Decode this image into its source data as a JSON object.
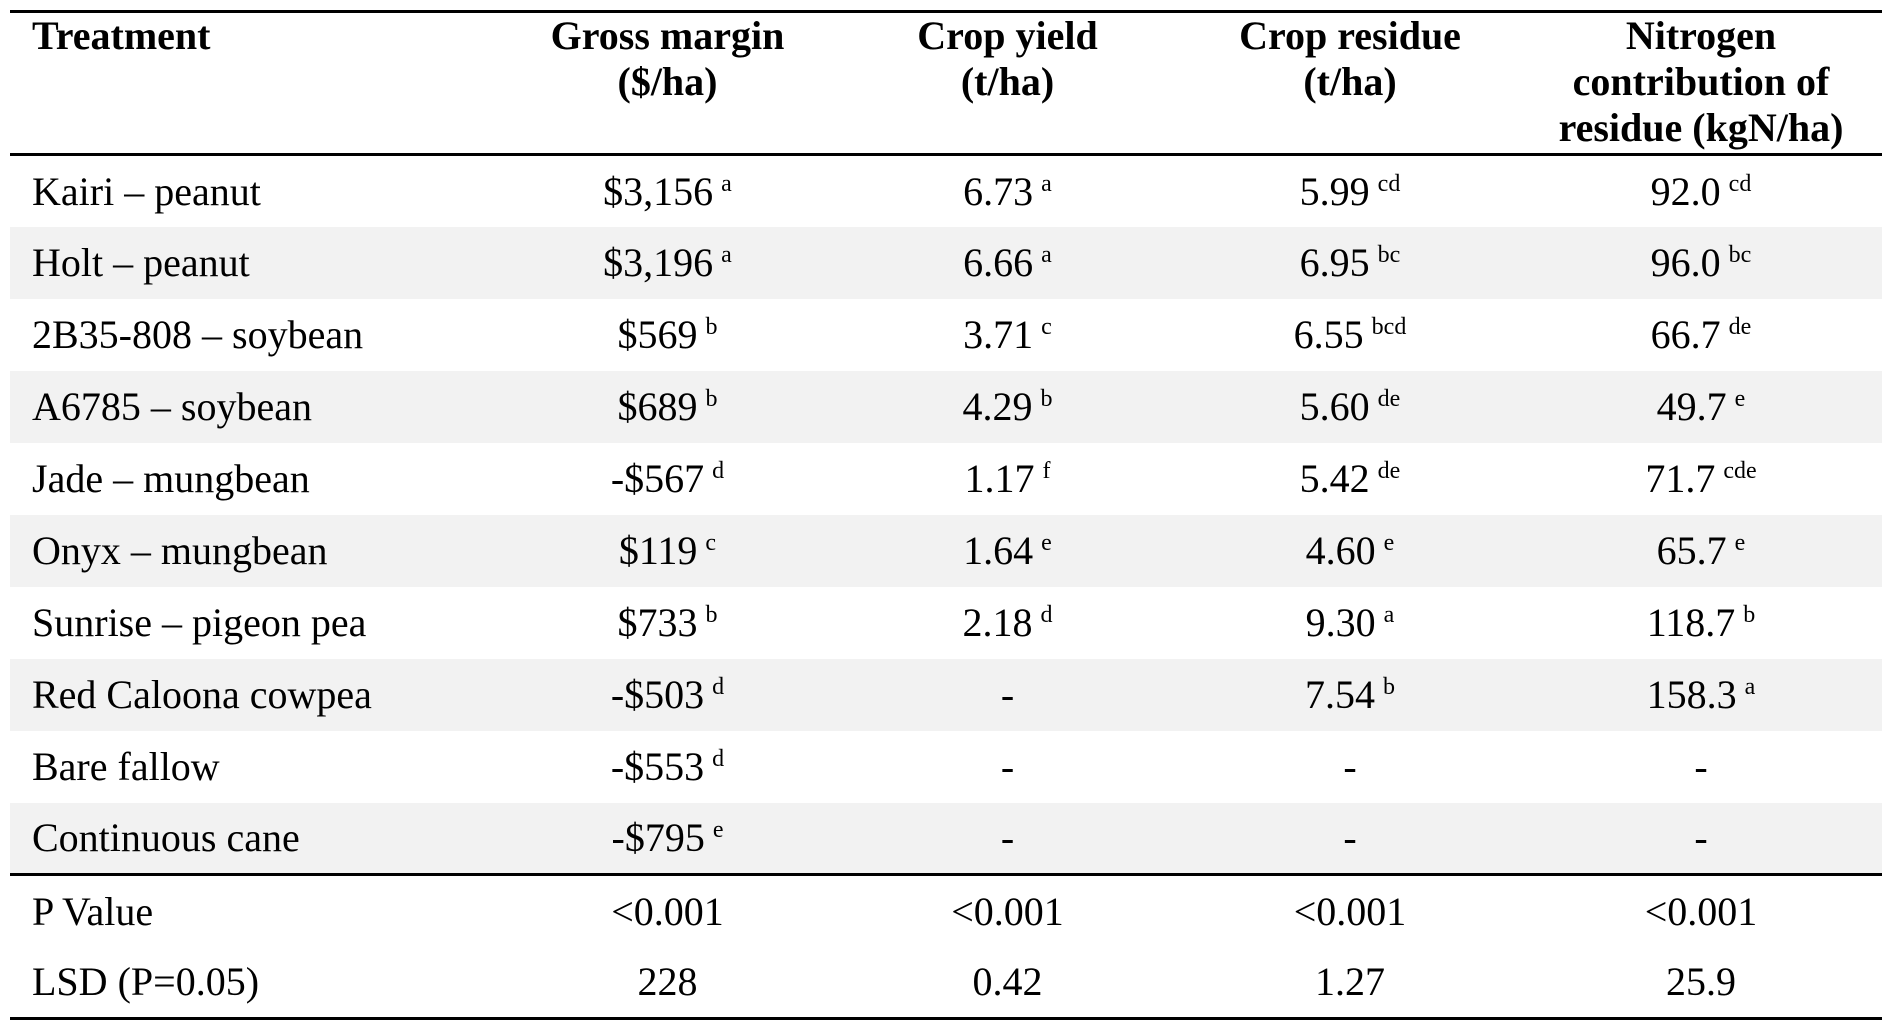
{
  "headers": {
    "treatment": "Treatment",
    "gross_margin_line1": "Gross margin",
    "gross_margin_line2": "($/ha)",
    "crop_yield_line1": "Crop yield",
    "crop_yield_line2": "(t/ha)",
    "crop_residue_line1": "Crop residue",
    "crop_residue_line2": "(t/ha)",
    "nitrogen_line1": "Nitrogen",
    "nitrogen_line2": "contribution of",
    "nitrogen_line3": "residue (kgN/ha)"
  },
  "rows": [
    {
      "treatment": "Kairi – peanut",
      "gross_margin": "$3,156",
      "gm_sig": "a",
      "crop_yield": "6.73",
      "cy_sig": "a",
      "crop_residue": "5.99",
      "cr_sig": "cd",
      "nitrogen": "92.0",
      "n_sig": "cd"
    },
    {
      "treatment": "Holt – peanut",
      "gross_margin": "$3,196",
      "gm_sig": "a",
      "crop_yield": "6.66",
      "cy_sig": "a",
      "crop_residue": "6.95",
      "cr_sig": "bc",
      "nitrogen": "96.0",
      "n_sig": "bc"
    },
    {
      "treatment": "2B35-808 – soybean",
      "gross_margin": "$569",
      "gm_sig": "b",
      "crop_yield": "3.71",
      "cy_sig": "c",
      "crop_residue": "6.55",
      "cr_sig": "bcd",
      "nitrogen": "66.7",
      "n_sig": "de"
    },
    {
      "treatment": "A6785 – soybean",
      "gross_margin": "$689",
      "gm_sig": "b",
      "crop_yield": "4.29",
      "cy_sig": "b",
      "crop_residue": "5.60",
      "cr_sig": "de",
      "nitrogen": "49.7",
      "n_sig": "e"
    },
    {
      "treatment": "Jade – mungbean",
      "gross_margin": "-$567",
      "gm_sig": "d",
      "crop_yield": "1.17",
      "cy_sig": "f",
      "crop_residue": "5.42",
      "cr_sig": "de",
      "nitrogen": "71.7",
      "n_sig": "cde"
    },
    {
      "treatment": "Onyx – mungbean",
      "gross_margin": "$119",
      "gm_sig": "c",
      "crop_yield": "1.64",
      "cy_sig": "e",
      "crop_residue": "4.60",
      "cr_sig": "e",
      "nitrogen": "65.7",
      "n_sig": "e"
    },
    {
      "treatment": "Sunrise – pigeon pea",
      "gross_margin": "$733",
      "gm_sig": "b",
      "crop_yield": "2.18",
      "cy_sig": "d",
      "crop_residue": "9.30",
      "cr_sig": "a",
      "nitrogen": "118.7",
      "n_sig": "b"
    },
    {
      "treatment": "Red Caloona cowpea",
      "gross_margin": "-$503",
      "gm_sig": "d",
      "crop_yield": "-",
      "cy_sig": "",
      "crop_residue": "7.54",
      "cr_sig": "b",
      "nitrogen": "158.3",
      "n_sig": "a"
    },
    {
      "treatment": "Bare fallow",
      "gross_margin": "-$553",
      "gm_sig": "d",
      "crop_yield": "-",
      "cy_sig": "",
      "crop_residue": "-",
      "cr_sig": "",
      "nitrogen": "-",
      "n_sig": ""
    },
    {
      "treatment": "Continuous cane",
      "gross_margin": "-$795",
      "gm_sig": "e",
      "crop_yield": "-",
      "cy_sig": "",
      "crop_residue": "-",
      "cr_sig": "",
      "nitrogen": "-",
      "n_sig": ""
    }
  ],
  "footer": {
    "p_value": {
      "label": "P Value",
      "gross_margin": "<0.001",
      "crop_yield": "<0.001",
      "crop_residue": "<0.001",
      "nitrogen": "<0.001"
    },
    "lsd": {
      "label": "LSD (P=0.05)",
      "gross_margin": "228",
      "crop_yield": "0.42",
      "crop_residue": "1.27",
      "nitrogen": "25.9"
    }
  }
}
